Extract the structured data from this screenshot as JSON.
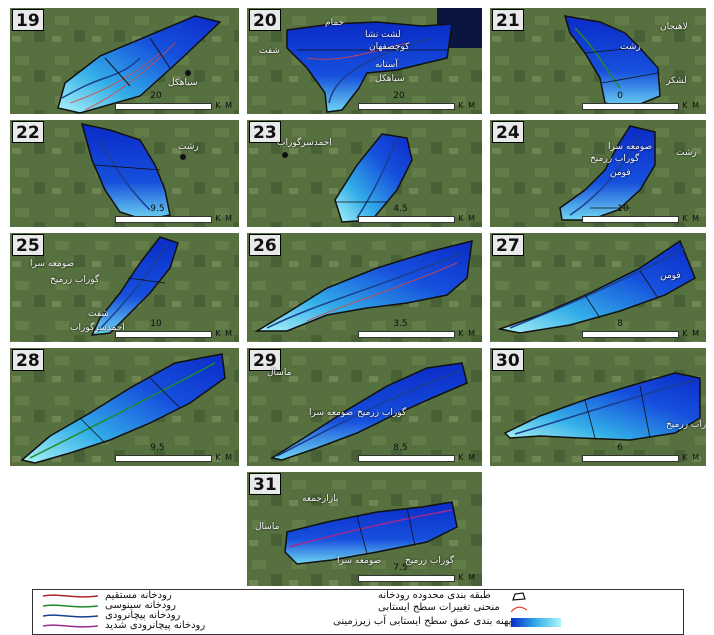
{
  "panels": [
    {
      "id": "19",
      "scale": "20",
      "km": "K M",
      "places": [
        "سیاهکل"
      ]
    },
    {
      "id": "20",
      "scale": "20",
      "km": "K M",
      "places": [
        "خمام",
        "لشت نشا",
        "کوچصفهان",
        "شفت",
        "آستانه",
        "سیاهکل"
      ]
    },
    {
      "id": "21",
      "scale": "0",
      "km": "K M",
      "places": [
        "لاهیجان",
        "رشت",
        "لشکر"
      ]
    },
    {
      "id": "22",
      "scale": "9.5",
      "km": "K M",
      "places": [
        "رشت"
      ]
    },
    {
      "id": "23",
      "scale": "4.5",
      "km": "K M",
      "places": [
        "احمدسرگوراب"
      ]
    },
    {
      "id": "24",
      "scale": "10",
      "km": "K M",
      "places": [
        "رشت",
        "صومعه سرا",
        "گوراب زرمیخ",
        "فومن"
      ]
    },
    {
      "id": "25",
      "scale": "10",
      "km": "K M",
      "places": [
        "صومعه سرا",
        "گوراب زرمیخ",
        "شفت",
        "احمدسرگوراب"
      ]
    },
    {
      "id": "26",
      "scale": "3.5",
      "km": "K M",
      "places": []
    },
    {
      "id": "27",
      "scale": "8",
      "km": "K M",
      "places": [
        "فومن"
      ]
    },
    {
      "id": "28",
      "scale": "9.5",
      "km": "K M",
      "places": []
    },
    {
      "id": "29",
      "scale": "8.5",
      "km": "K M",
      "places": [
        "ماسال",
        "صومعه سرا",
        "گوراب زرمیخ"
      ]
    },
    {
      "id": "30",
      "scale": "6",
      "km": "K M",
      "places": [
        "گوراب زرمیخ"
      ]
    },
    {
      "id": "31",
      "scale": "7.5",
      "km": "K M",
      "places": [
        "بازارجمعه",
        "ماسال",
        "صومعه سرا",
        "گوراب زرمیخ"
      ]
    }
  ],
  "legend": {
    "river_direct": "رودخانه مستقیم",
    "river_sinuous": "رودخانه سینوسی",
    "river_meander": "رودخانه پیچانرودی",
    "river_severe_meander": "رودخانه پیچانرودی شدید",
    "boundary_class": "طبقه بندی محدوده رودخانه",
    "contour": "منحنی تغییرات سطح ایستابی",
    "depth_zoning": "پهنه بندی عمق سطح ایستابی آب زیرزمینی"
  },
  "colors": {
    "deep": "#0b2bc8",
    "mid": "#33aee8",
    "shallow": "#aef5f7",
    "contour": "#e0453a",
    "river_direct": "#b0242a",
    "river_sinuous": "#1f8a2c",
    "river_meander": "#1a3f8f",
    "river_severe": "#9a2a8f"
  }
}
